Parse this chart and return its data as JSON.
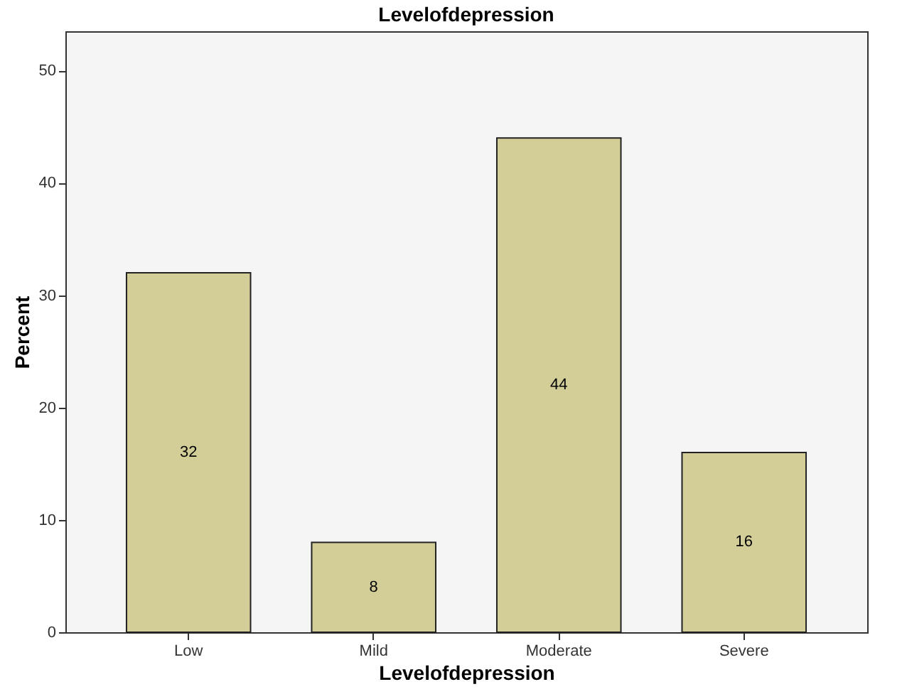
{
  "chart_data": {
    "type": "bar",
    "title": "Levelofdepression",
    "xlabel": "Levelofdepression",
    "ylabel": "Percent",
    "categories": [
      "Low",
      "Mild",
      "Moderate",
      "Severe"
    ],
    "values": [
      32,
      8,
      44,
      16
    ],
    "color": "#d3ce98",
    "ylim": [
      0,
      53.5
    ],
    "yticks": [
      0,
      10,
      20,
      30,
      40,
      50
    ],
    "grid": false,
    "data_labels": true
  }
}
